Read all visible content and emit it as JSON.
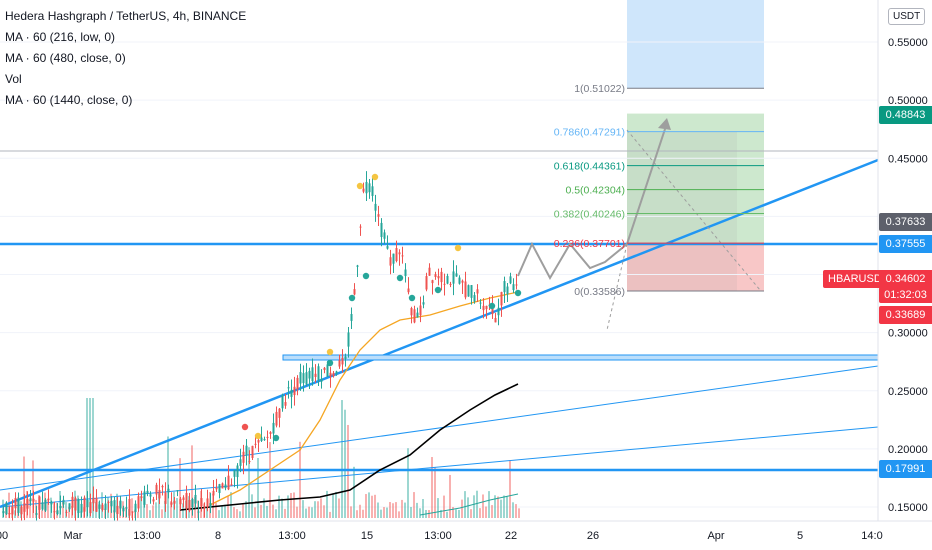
{
  "header": {
    "title": "Hedera Hashgraph / TetherUS, 4h, BINANCE",
    "indicators": [
      "MA · 60 (216, low, 0)",
      "MA · 60 (480, close, 0)",
      "Vol",
      "MA · 60 (1440, close, 0)"
    ]
  },
  "currency_button": "USDT",
  "symbol_tag": "HBARUSDT",
  "price_badges": {
    "target": "0.48843",
    "gray": "0.37633",
    "level_blue": "0.37555",
    "last": "0.34602",
    "countdown": "01:32:03",
    "stop": "0.33689",
    "support_blue": "0.17991"
  },
  "colors": {
    "up": "#26a69a",
    "down": "#ef5350",
    "trendline": "#2196f3",
    "ma_orange": "#f5a623",
    "ma_black": "#000000",
    "profit_zone": "#c8e6c9",
    "loss_zone": "#f8c7c7",
    "badge_blue": "#2196f3",
    "badge_green": "#089981",
    "badge_gray": "#5d606b",
    "badge_red": "#f23645"
  },
  "chart_data": {
    "type": "candlestick",
    "y_axis": {
      "ticks": [
        "0.55000",
        "0.50000",
        "0.45000",
        "0.40000",
        "0.35000",
        "0.30000",
        "0.25000",
        "0.20000",
        "0.15000"
      ],
      "tick_values": [
        0.55,
        0.5,
        0.45,
        0.4,
        0.35,
        0.3,
        0.25,
        0.2,
        0.15
      ]
    },
    "x_axis": {
      "ticks": [
        "00",
        "Mar",
        "13:00",
        "8",
        "13:00",
        "15",
        "13:00",
        "22",
        "26",
        "Apr",
        "5",
        "14:0"
      ]
    },
    "fib_levels": [
      {
        "ratio": "1",
        "price": "0.51022",
        "label": "1(0.51022)"
      },
      {
        "ratio": "0.786",
        "price": "0.47291",
        "label": "0.786(0.47291)"
      },
      {
        "ratio": "0.618",
        "price": "0.44361",
        "label": "0.618(0.44361)"
      },
      {
        "ratio": "0.5",
        "price": "0.42304",
        "label": "0.5(0.42304)"
      },
      {
        "ratio": "0.382",
        "price": "0.40246",
        "label": "0.382(0.40246)"
      },
      {
        "ratio": "0.236",
        "price": "0.37701",
        "label": "0.236(0.37701)"
      },
      {
        "ratio": "0",
        "price": "0.33586",
        "label": "0(0.33586)"
      }
    ],
    "horizontal_levels": [
      0.37555,
      0.17991
    ],
    "last_price": 0.34602,
    "position": {
      "entry": 0.37555,
      "target": 0.48843,
      "stop": 0.33689
    }
  }
}
